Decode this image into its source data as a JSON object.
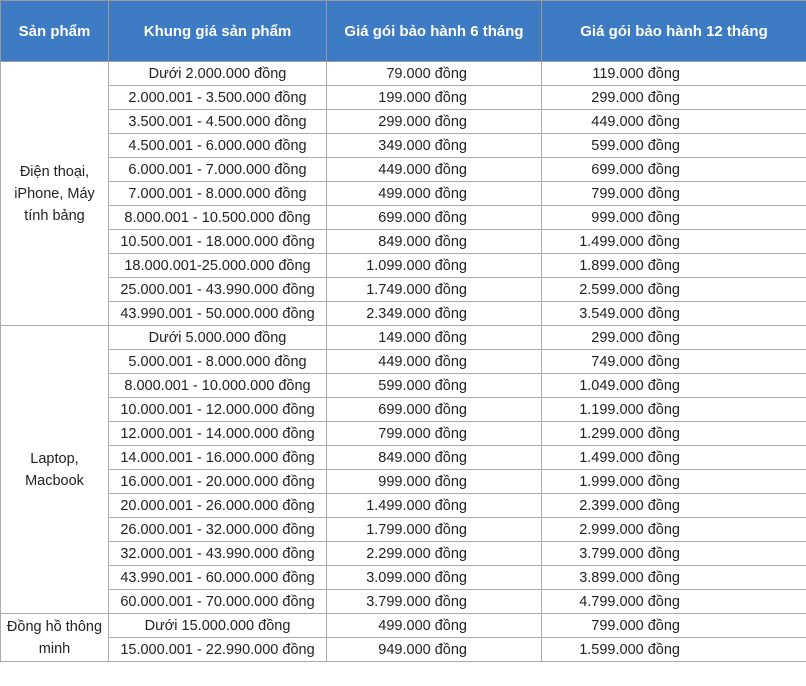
{
  "table": {
    "header": [
      "Sản phẩm",
      "Khung giá sản phẩm",
      "Giá gói bảo hành 6 tháng",
      "Giá gói bảo hành 12 tháng"
    ],
    "groups": [
      {
        "product": "Điện thoại, iPhone, Máy tính bảng",
        "rows": [
          [
            "Dưới 2.000.000 đồng",
            "79.000 đồng",
            "119.000 đồng"
          ],
          [
            "2.000.001 - 3.500.000 đồng",
            "199.000 đồng",
            "299.000 đồng"
          ],
          [
            "3.500.001 - 4.500.000 đồng",
            "299.000 đồng",
            "449.000 đồng"
          ],
          [
            "4.500.001 - 6.000.000 đồng",
            "349.000 đồng",
            "599.000 đồng"
          ],
          [
            "6.000.001 - 7.000.000 đồng",
            "449.000 đồng",
            "699.000 đồng"
          ],
          [
            "7.000.001 - 8.000.000 đồng",
            "499.000 đồng",
            "799.000 đồng"
          ],
          [
            "8.000.001 - 10.500.000 đồng",
            "699.000 đồng",
            "999.000 đồng"
          ],
          [
            "10.500.001 - 18.000.000 đồng",
            "849.000 đồng",
            "1.499.000 đồng"
          ],
          [
            "18.000.001-25.000.000 đồng",
            "1.099.000 đồng",
            "1.899.000 đồng"
          ],
          [
            "25.000.001 - 43.990.000 đồng",
            "1.749.000 đồng",
            "2.599.000 đồng"
          ],
          [
            "43.990.001 - 50.000.000 đồng",
            "2.349.000 đồng",
            "3.549.000 đồng"
          ]
        ]
      },
      {
        "product": "Laptop, Macbook",
        "rows": [
          [
            "Dưới 5.000.000 đồng",
            "149.000 đồng",
            "299.000 đồng"
          ],
          [
            "5.000.001 - 8.000.000 đồng",
            "449.000 đồng",
            "749.000 đồng"
          ],
          [
            "8.000.001 - 10.000.000 đồng",
            "599.000 đồng",
            "1.049.000 đồng"
          ],
          [
            "10.000.001 - 12.000.000 đồng",
            "699.000 đồng",
            "1.199.000 đồng"
          ],
          [
            "12.000.001 - 14.000.000 đồng",
            "799.000 đồng",
            "1.299.000 đồng"
          ],
          [
            "14.000.001 - 16.000.000 đồng",
            "849.000 đồng",
            "1.499.000 đồng"
          ],
          [
            "16.000.001 - 20.000.000 đồng",
            "999.000 đồng",
            "1.999.000 đồng"
          ],
          [
            "20.000.001 - 26.000.000 đồng",
            "1.499.000 đồng",
            "2.399.000 đồng"
          ],
          [
            "26.000.001 - 32.000.000 đồng",
            "1.799.000 đồng",
            "2.999.000 đồng"
          ],
          [
            "32.000.001 - 43.990.000 đồng",
            "2.299.000 đồng",
            "3.799.000 đồng"
          ],
          [
            "43.990.001 - 60.000.000 đồng",
            "3.099.000 đồng",
            "3.899.000 đồng"
          ],
          [
            "60.000.001 - 70.000.000 đồng",
            "3.799.000 đồng",
            "4.799.000 đồng"
          ]
        ]
      },
      {
        "product": "Đồng hồ thông minh",
        "rows": [
          [
            "Dưới 15.000.000 đồng",
            "499.000 đồng",
            "799.000 đồng"
          ],
          [
            "15.000.001 - 22.990.000 đồng",
            "949.000 đồng",
            "1.599.000 đồng"
          ]
        ]
      }
    ]
  }
}
